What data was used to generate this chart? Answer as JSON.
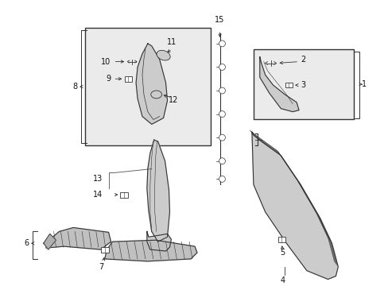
{
  "bg_color": "#ffffff",
  "lc": "#333333",
  "gray_fill": "#cccccc",
  "light_fill": "#e8e8e8",
  "box_fill": "#ebebeb",
  "figsize": [
    4.89,
    3.6
  ],
  "dpi": 100
}
